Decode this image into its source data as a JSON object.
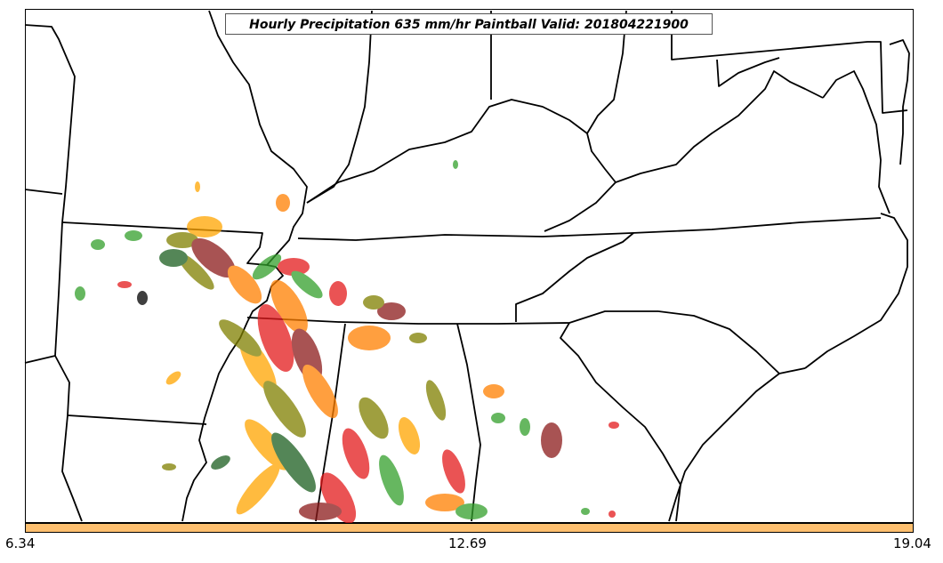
{
  "title": "Hourly Precipitation 635 mm/hr Paintball Valid: 201804221900",
  "colorbar": {
    "ticks": [
      "6.34",
      "12.69",
      "19.04"
    ],
    "color": "#fdbf6f"
  },
  "colors": {
    "boundary": "#000000",
    "members": [
      "#e31a1c",
      "#ff7f00",
      "#33a02c",
      "#808000",
      "#8b1a1a",
      "#1b5e20",
      "#000000",
      "#ffa500"
    ]
  }
}
